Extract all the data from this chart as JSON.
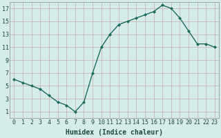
{
  "x": [
    0,
    1,
    2,
    3,
    4,
    5,
    6,
    7,
    8,
    9,
    10,
    11,
    12,
    13,
    14,
    15,
    16,
    17,
    18,
    19,
    20,
    21,
    22,
    23
  ],
  "y": [
    6,
    5.5,
    5,
    4.5,
    3.5,
    2.5,
    2,
    1,
    2.5,
    7,
    11,
    13,
    14.5,
    15,
    15.5,
    16,
    16.5,
    17.5,
    17,
    15.5,
    13.5,
    11.5,
    11.5,
    11
  ],
  "line_color": "#1e6b5e",
  "marker_color": "#1e6b5e",
  "bg_color": "#d5ecea",
  "grid_color": "#c8b8b8",
  "xlabel": "Humidex (Indice chaleur)",
  "xlim": [
    -0.5,
    23.5
  ],
  "ylim": [
    0,
    18
  ],
  "yticks": [
    1,
    3,
    5,
    7,
    9,
    11,
    13,
    15,
    17
  ],
  "xticks": [
    0,
    1,
    2,
    3,
    4,
    5,
    6,
    7,
    8,
    9,
    10,
    11,
    12,
    13,
    14,
    15,
    16,
    17,
    18,
    19,
    20,
    21,
    22,
    23
  ],
  "xtick_labels": [
    "0",
    "1",
    "2",
    "3",
    "4",
    "5",
    "6",
    "7",
    "8",
    "9",
    "10",
    "11",
    "12",
    "13",
    "14",
    "15",
    "16",
    "17",
    "18",
    "19",
    "20",
    "21",
    "22",
    "23"
  ],
  "font_color": "#1e4a3a",
  "xlabel_fontsize": 7,
  "tick_fontsize": 6
}
